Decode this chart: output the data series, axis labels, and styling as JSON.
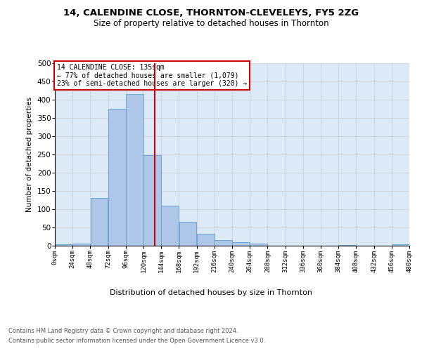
{
  "title": "14, CALENDINE CLOSE, THORNTON-CLEVELEYS, FY5 2ZG",
  "subtitle": "Size of property relative to detached houses in Thornton",
  "xlabel": "Distribution of detached houses by size in Thornton",
  "ylabel": "Number of detached properties",
  "footer_line1": "Contains HM Land Registry data © Crown copyright and database right 2024.",
  "footer_line2": "Contains public sector information licensed under the Open Government Licence v3.0.",
  "bar_bins": [
    0,
    24,
    48,
    72,
    96,
    120,
    144,
    168,
    192,
    216,
    240,
    264,
    288,
    312,
    336,
    360,
    384,
    408,
    432,
    456,
    480
  ],
  "bar_values": [
    3,
    5,
    130,
    375,
    415,
    248,
    110,
    65,
    32,
    15,
    9,
    6,
    0,
    0,
    0,
    0,
    1,
    0,
    0,
    3
  ],
  "bar_color": "#aec6e8",
  "bar_edge_color": "#5a9fd4",
  "vline_x": 135,
  "vline_color": "#cc0000",
  "annotation_title": "14 CALENDINE CLOSE: 135sqm",
  "annotation_line2": "← 77% of detached houses are smaller (1,079)",
  "annotation_line3": "23% of semi-detached houses are larger (320) →",
  "annotation_box_color": "#cc0000",
  "xlim": [
    0,
    480
  ],
  "ylim": [
    0,
    500
  ],
  "xtick_labels": [
    "0sqm",
    "24sqm",
    "48sqm",
    "72sqm",
    "96sqm",
    "120sqm",
    "144sqm",
    "168sqm",
    "192sqm",
    "216sqm",
    "240sqm",
    "264sqm",
    "288sqm",
    "312sqm",
    "336sqm",
    "360sqm",
    "384sqm",
    "408sqm",
    "432sqm",
    "456sqm",
    "480sqm"
  ],
  "xtick_positions": [
    0,
    24,
    48,
    72,
    96,
    120,
    144,
    168,
    192,
    216,
    240,
    264,
    288,
    312,
    336,
    360,
    384,
    408,
    432,
    456,
    480
  ],
  "ytick_positions": [
    0,
    50,
    100,
    150,
    200,
    250,
    300,
    350,
    400,
    450,
    500
  ],
  "grid_color": "#cccccc",
  "background_color": "#dce9f7",
  "figure_background": "#ffffff"
}
